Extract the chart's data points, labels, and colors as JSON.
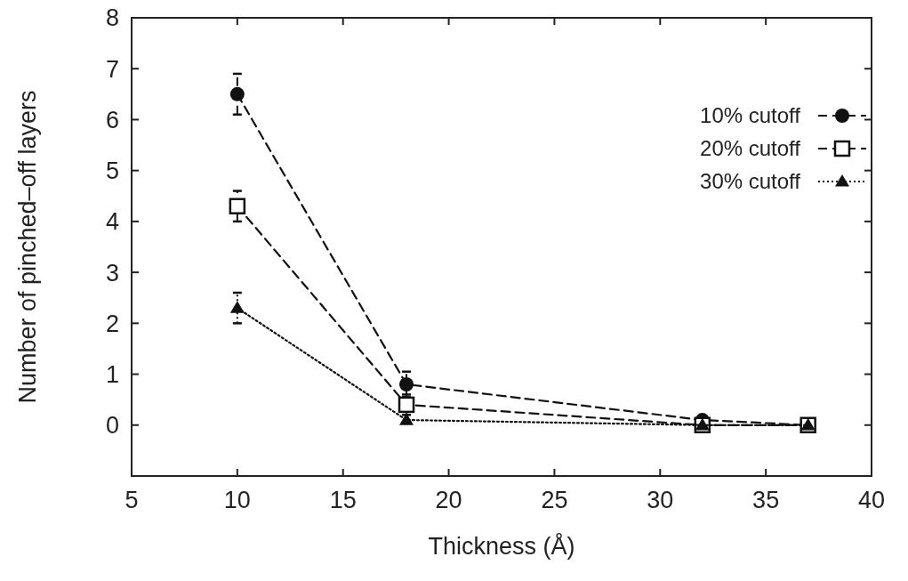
{
  "chart_data": {
    "type": "line",
    "xlabel": "Thickness (Å)",
    "ylabel": "Number of pinched–off layers",
    "xlim": [
      5,
      40
    ],
    "xticks": [
      5,
      10,
      15,
      20,
      25,
      30,
      35,
      40
    ],
    "ylim": [
      -1,
      8
    ],
    "yticks": [
      {
        "value": -1,
        "label": null
      },
      0,
      1,
      2,
      3,
      4,
      5,
      6,
      7,
      8
    ],
    "legend": "top right",
    "grid": false,
    "series": [
      {
        "name": "10% cutoff",
        "color": "#111111",
        "x": [
          10,
          18,
          32,
          37
        ],
        "values": [
          6.5,
          0.8,
          0.1,
          0
        ],
        "errors": [
          0.4,
          0.25,
          null,
          null
        ],
        "marker": "circle",
        "line_style": "dashed"
      },
      {
        "name": "20% cutoff",
        "color": "#111111",
        "x": [
          10,
          18,
          32,
          37
        ],
        "values": [
          4.3,
          0.4,
          0,
          0
        ],
        "errors": [
          0.3,
          0.2,
          null,
          null
        ],
        "marker": "square",
        "line_style": "dashed"
      },
      {
        "name": "30% cutoff",
        "color": "#111111",
        "x": [
          10,
          18,
          32,
          37
        ],
        "values": [
          2.3,
          0.1,
          0,
          0
        ],
        "errors": [
          0.3,
          null,
          null,
          null
        ],
        "marker": "triangle",
        "line_style": "dotted"
      }
    ]
  }
}
